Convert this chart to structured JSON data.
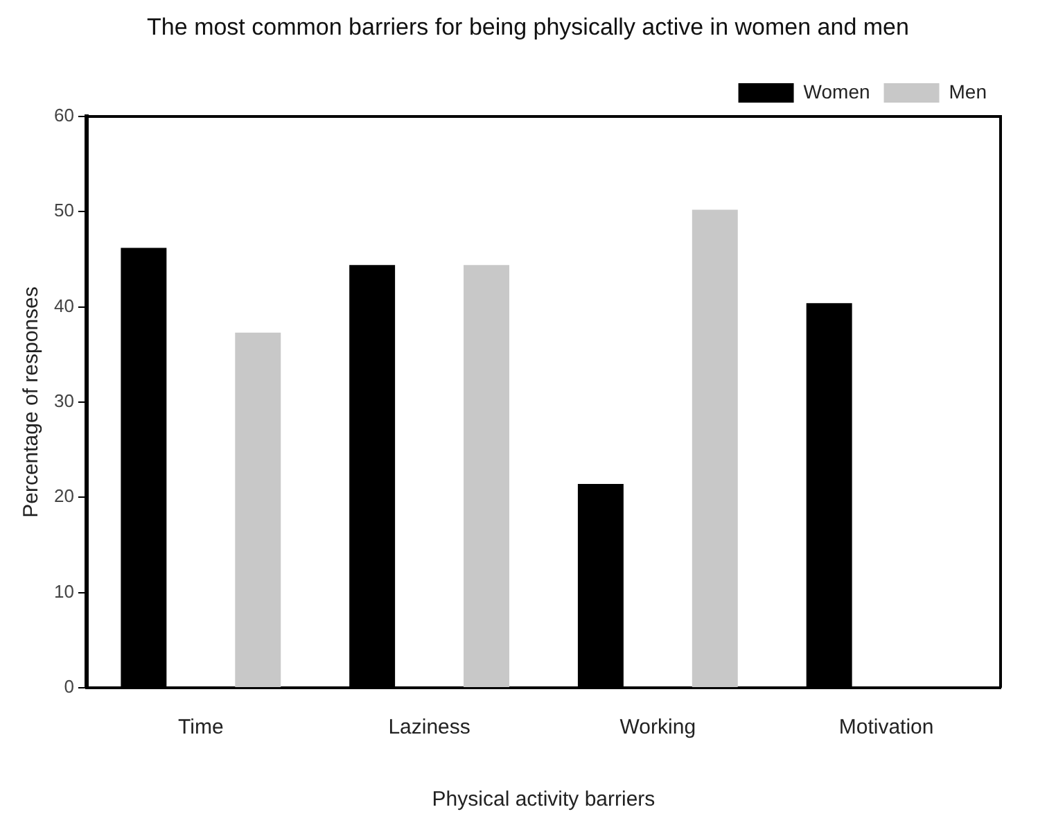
{
  "chart_data": {
    "type": "bar",
    "title": "The most common barriers for being physically active in women and men",
    "xlabel": "Physical activity barriers",
    "ylabel": "Percentage of responses",
    "categories": [
      "Time",
      "Laziness",
      "Working",
      "Motivation"
    ],
    "series": [
      {
        "name": "Women",
        "color": "#000000",
        "values": [
          46.2,
          44.4,
          21.4,
          40.4
        ]
      },
      {
        "name": "Men",
        "color": "#c8c8c8",
        "values": [
          37.3,
          44.4,
          50.2,
          0
        ]
      }
    ],
    "ylim": [
      0,
      60
    ],
    "yticks": [
      0,
      10,
      20,
      30,
      40,
      50,
      60
    ],
    "grid": false,
    "legend": "top right"
  }
}
